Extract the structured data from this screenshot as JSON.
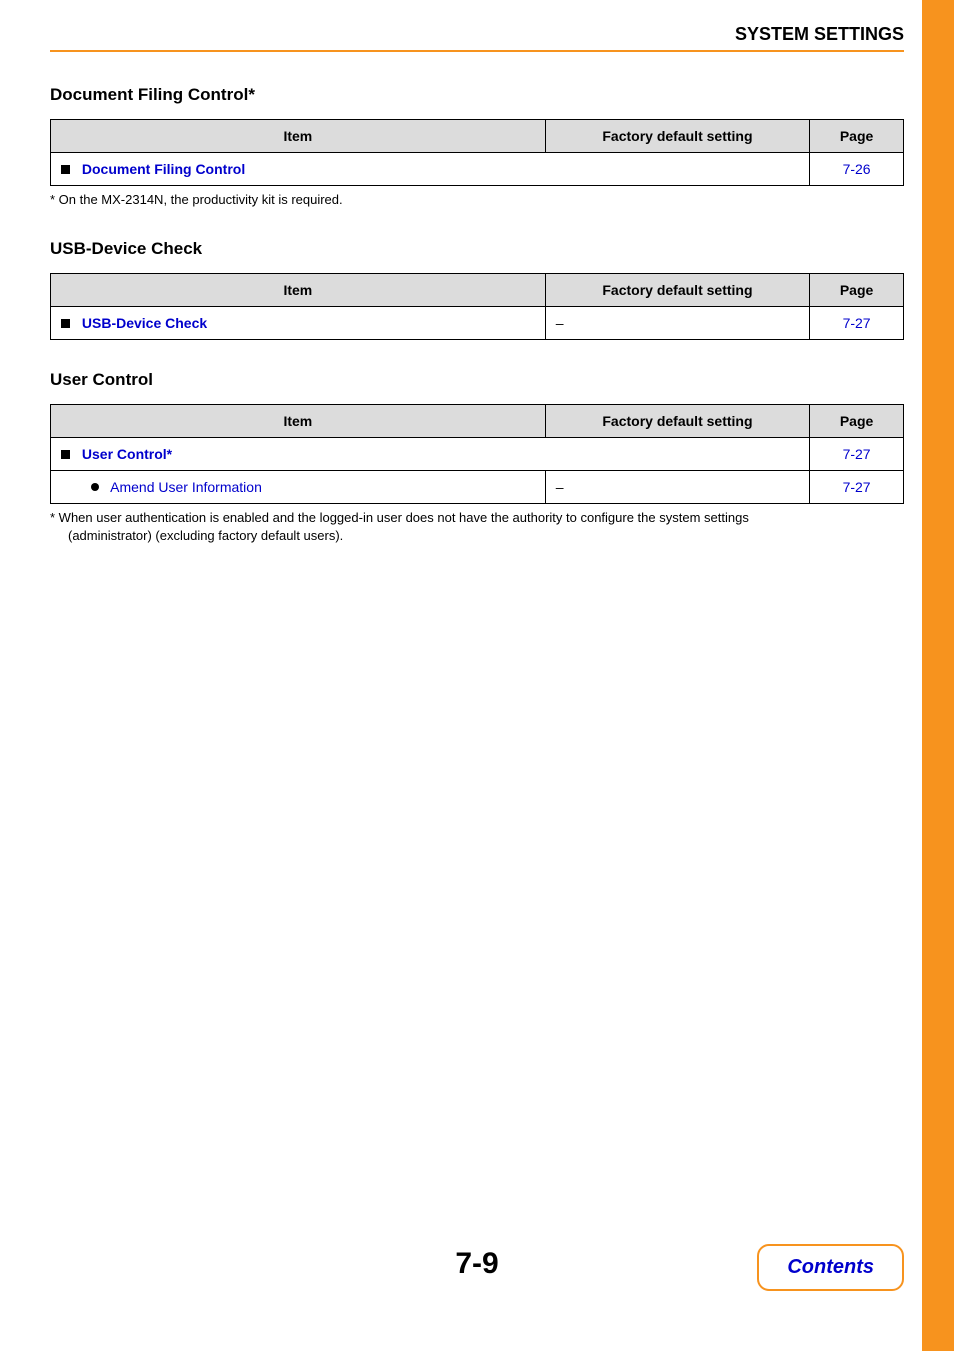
{
  "header": {
    "title": "SYSTEM SETTINGS"
  },
  "columns": {
    "item": "Item",
    "factory": "Factory default setting",
    "page": "Page"
  },
  "sections": {
    "doc_filing": {
      "title": "Document Filing Control*",
      "rows": [
        {
          "label": "Document Filing Control",
          "type": "square",
          "factory": "",
          "page": "7-26",
          "span": true
        }
      ],
      "footnote": "*  On the MX-2314N, the productivity kit is required."
    },
    "usb": {
      "title": "USB-Device Check",
      "rows": [
        {
          "label": "USB-Device Check",
          "type": "square",
          "factory": "–",
          "page": "7-27",
          "span": false
        }
      ]
    },
    "user": {
      "title": "User Control",
      "rows": [
        {
          "label": "User Control*",
          "type": "square",
          "factory": "",
          "page": "7-27",
          "span": true
        },
        {
          "label": "Amend User Information",
          "type": "round",
          "factory": "–",
          "page": "7-27",
          "span": false
        }
      ],
      "footnote1": "* When user authentication is enabled and the logged-in user does not have the authority to configure the system settings",
      "footnote2": "(administrator) (excluding factory default users)."
    }
  },
  "page_number": "7-9",
  "contents_label": "Contents"
}
